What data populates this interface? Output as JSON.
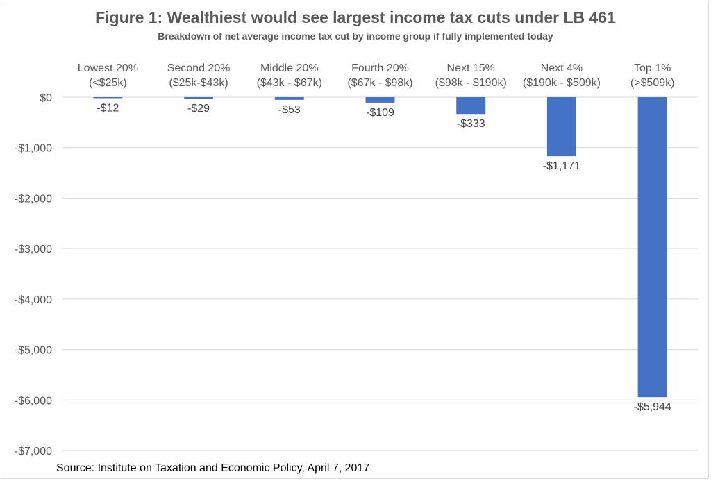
{
  "figure": {
    "title": "Figure 1: Wealthiest would see largest income tax cuts under LB 461",
    "subtitle": "Breakdown of net average income tax cut by income group if fully implemented today",
    "source": "Source: Institute on Taxation and Economic Policy, April 7, 2017"
  },
  "chart_data": {
    "type": "bar",
    "title": "Figure 1: Wealthiest would see largest income tax cuts under LB 461",
    "subtitle": "Breakdown of net average income tax cut by income group if fully implemented today",
    "xlabel": "",
    "ylabel": "",
    "categories": [
      {
        "name": "Lowest 20%",
        "range": "(<$25k)"
      },
      {
        "name": "Second 20%",
        "range": "($25k-$43k)"
      },
      {
        "name": "Middle 20%",
        "range": "($43k - $67k)"
      },
      {
        "name": "Fourth 20%",
        "range": "($67k - $98k)"
      },
      {
        "name": "Next 15%",
        "range": "($98k - $190k)"
      },
      {
        "name": "Next 4%",
        "range": "($190k - $509k)"
      },
      {
        "name": "Top 1%",
        "range": "(>$509k)"
      }
    ],
    "values": [
      -12,
      -29,
      -53,
      -109,
      -333,
      -1171,
      -5944
    ],
    "data_labels": [
      "-$12",
      "-$29",
      "-$53",
      "-$109",
      "-$333",
      "-$1,171",
      "-$5,944"
    ],
    "ylim": [
      -7000,
      0
    ],
    "yticks": [
      0,
      -1000,
      -2000,
      -3000,
      -4000,
      -5000,
      -6000,
      -7000
    ],
    "ytick_labels": [
      "$0",
      "-$1,000",
      "-$2,000",
      "-$3,000",
      "-$4,000",
      "-$5,000",
      "-$6,000",
      "-$7,000"
    ],
    "grid": true,
    "legend": "none",
    "colors": {
      "bar": "#4472c4",
      "grid": "#d9d9d9"
    }
  }
}
